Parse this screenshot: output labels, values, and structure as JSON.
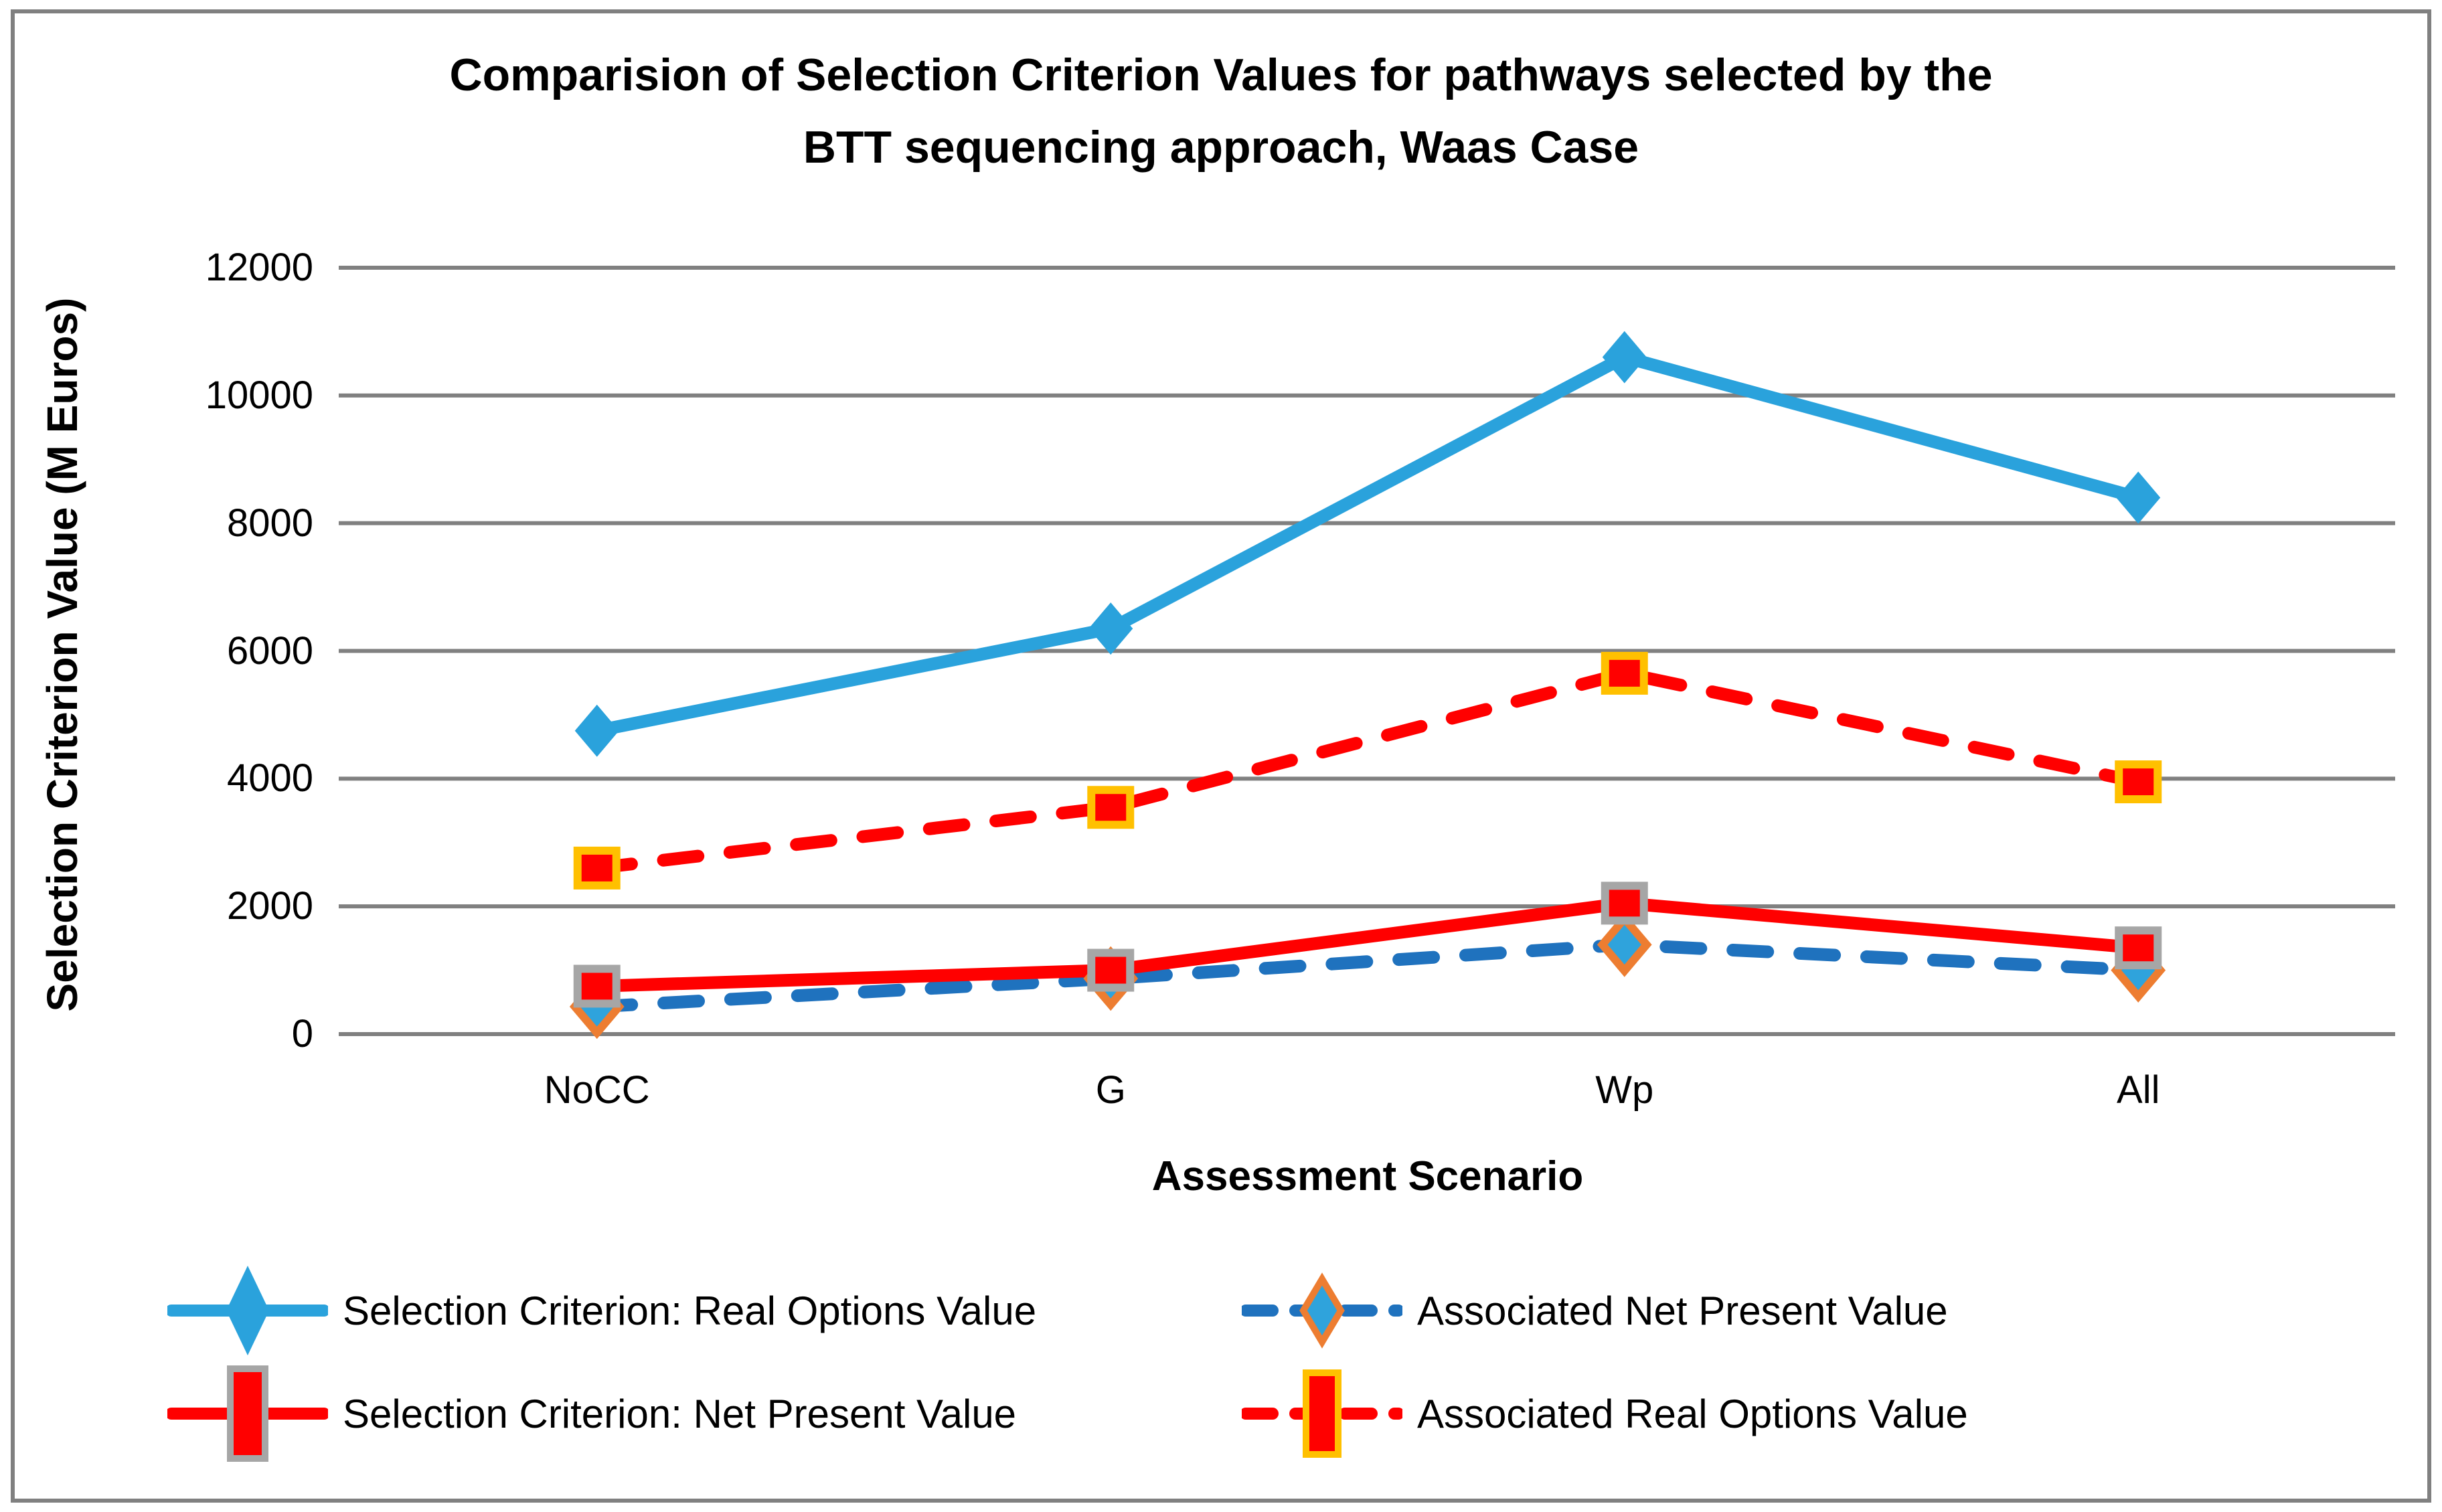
{
  "title_lines": [
    "Comparision of Selection Criterion Values for pathways selected by the",
    "BTT sequencing approach, Waas Case"
  ],
  "y_axis": {
    "label": "Selection Criterion Value (M Euros)"
  },
  "x_axis": {
    "label": "Assessment Scenario"
  },
  "colors": {
    "background": "#FFFFFF",
    "border": "#808080",
    "gridline": "#808080",
    "text": "#000000",
    "rov_blue": "#2AA2DC",
    "npv_dashed_blue": "#1F72BE",
    "red": "#FF0000",
    "marker_outline_yellow": "#FFC000",
    "marker_outline_orange": "#ED7D31",
    "marker_outline_gray": "#A6A6A6"
  },
  "chart_data": {
    "type": "line",
    "title": "Comparision of Selection Criterion Values for pathways selected by the BTT sequencing approach, Waas Case",
    "xlabel": "Assessment Scenario",
    "ylabel": "Selection Criterion Value (M Euros)",
    "categories": [
      "NoCC",
      "G",
      "Wp",
      "All"
    ],
    "ylim": [
      0,
      12000
    ],
    "yticks": [
      0,
      2000,
      4000,
      6000,
      8000,
      10000,
      12000
    ],
    "grid": true,
    "legend_position": "bottom",
    "series": [
      {
        "name": "Selection Criterion: Real Options Value",
        "values": [
          4750,
          6350,
          10600,
          8400
        ],
        "color": "#2AA2DC",
        "dash": false,
        "marker": "diamond",
        "marker_fill": "#2AA2DC",
        "marker_stroke": null
      },
      {
        "name": "Associated Net Present Value",
        "values": [
          430,
          870,
          1400,
          1000
        ],
        "color": "#1F72BE",
        "dash": true,
        "marker": "diamond",
        "marker_fill": "#2FA3DC",
        "marker_stroke": "#ED7D31"
      },
      {
        "name": "Selection Criterion: Net Present Value",
        "values": [
          750,
          1000,
          2050,
          1350
        ],
        "color": "#FF0000",
        "dash": false,
        "marker": "square",
        "marker_fill": "#FF0000",
        "marker_stroke": "#A6A6A6"
      },
      {
        "name": "Associated Real Options Value",
        "values": [
          2600,
          3550,
          5650,
          3950
        ],
        "color": "#FF0000",
        "dash": true,
        "marker": "square",
        "marker_fill": "#FF0000",
        "marker_stroke": "#FFC000"
      }
    ]
  }
}
